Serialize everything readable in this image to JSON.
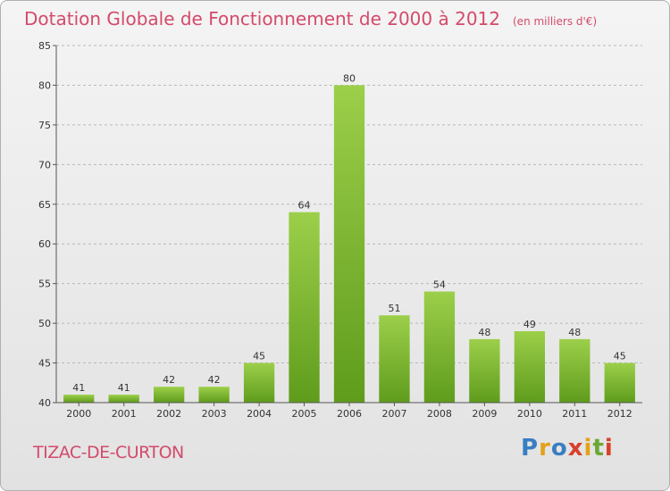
{
  "title": "Dotation Globale de Fonctionnement de 2000 à 2012",
  "unit_note": "(en milliers d'€)",
  "commune": "TIZAC-DE-CURTON",
  "logo": {
    "text": "Proxiti",
    "colors": [
      "#3a7ec2",
      "#e3a21a",
      "#d9402b",
      "#6aa832"
    ]
  },
  "chart_data": {
    "type": "bar",
    "title": "Dotation Globale de Fonctionnement de 2000 à 2012",
    "subtitle": "(en milliers d'€)",
    "xlabel": "",
    "ylabel": "",
    "categories": [
      "2000",
      "2001",
      "2002",
      "2003",
      "2004",
      "2005",
      "2006",
      "2007",
      "2008",
      "2009",
      "2010",
      "2011",
      "2012"
    ],
    "values": [
      41,
      41,
      42,
      42,
      45,
      64,
      80,
      51,
      54,
      48,
      49,
      48,
      45
    ],
    "ylim": [
      40,
      85
    ],
    "yticks": [
      40,
      45,
      50,
      55,
      60,
      65,
      70,
      75,
      80,
      85
    ],
    "grid": true,
    "bar_color": "#7dbb32",
    "grid_color": "#b8b8b8"
  }
}
